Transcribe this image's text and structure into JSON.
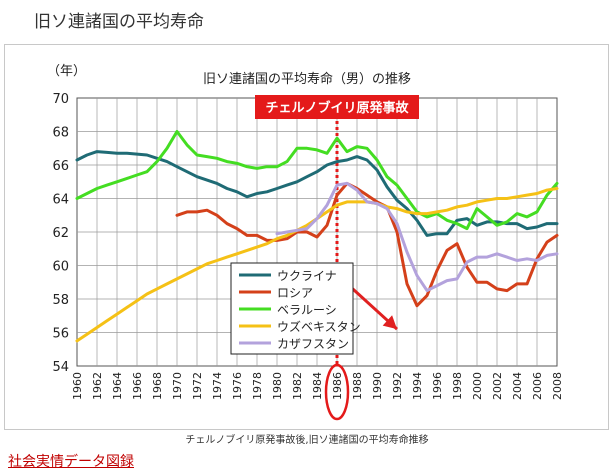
{
  "page": {
    "heading": "旧ソ連諸国の平均寿命",
    "caption": "チェルノブイリ原発事故後,旧ソ連諸国の平均寿命推移",
    "source_link": "社会実情データ図録"
  },
  "chart_data": {
    "type": "line",
    "title": "旧ソ連諸国の平均寿命（男）の推移",
    "ylabel": "（年）",
    "ylim": [
      54,
      70
    ],
    "y_ticks": [
      54,
      56,
      58,
      60,
      62,
      64,
      66,
      68,
      70
    ],
    "xlim": [
      1960,
      2008
    ],
    "x_ticks": [
      "1960",
      "1962",
      "1964",
      "1966",
      "1968",
      "1970",
      "1972",
      "1974",
      "1976",
      "1978",
      "1980",
      "1982",
      "1984",
      "1986",
      "1988",
      "1990",
      "1992",
      "1994",
      "1996",
      "1998",
      "2000",
      "2002",
      "2004",
      "2006",
      "2008"
    ],
    "grid": true,
    "legend_placement": "lower-center",
    "annotation": {
      "label": "チェルノブイリ原発事故",
      "year": 1986,
      "label_bg": "#e41a1a",
      "line_color": "#e41a1a"
    },
    "highlight_tick": "1986",
    "arrow": {
      "from": [
        1985,
        60
      ],
      "to": [
        1992,
        56.2
      ],
      "color": "#e02020"
    },
    "series": [
      {
        "name": "ウクライナ",
        "color": "#1f6b75",
        "x": [
          1960,
          1961,
          1962,
          1963,
          1964,
          1965,
          1966,
          1967,
          1968,
          1969,
          1970,
          1971,
          1972,
          1973,
          1974,
          1975,
          1976,
          1977,
          1978,
          1979,
          1980,
          1981,
          1982,
          1983,
          1984,
          1985,
          1986,
          1987,
          1988,
          1989,
          1990,
          1991,
          1992,
          1993,
          1994,
          1995,
          1996,
          1997,
          1998,
          1999,
          2000,
          2001,
          2002,
          2003,
          2004,
          2005,
          2006,
          2007,
          2008
        ],
        "y": [
          66.3,
          66.6,
          66.8,
          66.75,
          66.7,
          66.7,
          66.65,
          66.6,
          66.4,
          66.2,
          65.9,
          65.6,
          65.3,
          65.1,
          64.9,
          64.6,
          64.4,
          64.1,
          64.3,
          64.4,
          64.6,
          64.8,
          65.0,
          65.3,
          65.6,
          66.0,
          66.2,
          66.3,
          66.5,
          66.3,
          65.7,
          64.7,
          63.9,
          63.4,
          62.7,
          61.8,
          61.9,
          61.9,
          62.7,
          62.8,
          62.4,
          62.6,
          62.6,
          62.5,
          62.5,
          62.2,
          62.3,
          62.5,
          62.5
        ]
      },
      {
        "name": "ロシア",
        "color": "#d4401a",
        "x": [
          1970,
          1971,
          1972,
          1973,
          1974,
          1975,
          1976,
          1977,
          1978,
          1979,
          1980,
          1981,
          1982,
          1983,
          1984,
          1985,
          1986,
          1987,
          1988,
          1989,
          1990,
          1991,
          1992,
          1993,
          1994,
          1995,
          1996,
          1997,
          1998,
          1999,
          2000,
          2001,
          2002,
          2003,
          2004,
          2005,
          2006,
          2007,
          2008
        ],
        "y": [
          63.0,
          63.2,
          63.2,
          63.3,
          63.0,
          62.5,
          62.2,
          61.8,
          61.8,
          61.5,
          61.5,
          61.6,
          62.0,
          62.0,
          61.7,
          62.4,
          64.2,
          64.9,
          64.6,
          64.2,
          63.8,
          63.5,
          62.0,
          58.9,
          57.6,
          58.2,
          59.7,
          60.9,
          61.3,
          59.9,
          59.0,
          59.0,
          58.6,
          58.5,
          58.9,
          58.9,
          60.4,
          61.4,
          61.8
        ]
      },
      {
        "name": "ベラルーシ",
        "color": "#44dd22",
        "x": [
          1960,
          1961,
          1962,
          1963,
          1964,
          1965,
          1966,
          1967,
          1968,
          1969,
          1970,
          1971,
          1972,
          1973,
          1974,
          1975,
          1976,
          1977,
          1978,
          1979,
          1980,
          1981,
          1982,
          1983,
          1984,
          1985,
          1986,
          1987,
          1988,
          1989,
          1990,
          1991,
          1992,
          1993,
          1994,
          1995,
          1996,
          1997,
          1998,
          1999,
          2000,
          2001,
          2002,
          2003,
          2004,
          2005,
          2006,
          2007,
          2008
        ],
        "y": [
          64.0,
          64.3,
          64.6,
          64.8,
          65.0,
          65.2,
          65.4,
          65.6,
          66.2,
          67.0,
          68.0,
          67.2,
          66.6,
          66.5,
          66.4,
          66.2,
          66.1,
          65.9,
          65.8,
          65.9,
          65.9,
          66.2,
          67.0,
          67.0,
          66.9,
          66.7,
          67.6,
          66.8,
          67.1,
          67.0,
          66.3,
          65.3,
          64.8,
          64.0,
          63.2,
          62.9,
          63.1,
          62.7,
          62.5,
          62.2,
          63.4,
          62.9,
          62.4,
          62.6,
          63.1,
          62.9,
          63.2,
          64.2,
          64.9
        ]
      },
      {
        "name": "ウズベキスタン",
        "color": "#f5c116",
        "x": [
          1960,
          1961,
          1962,
          1963,
          1964,
          1965,
          1966,
          1967,
          1968,
          1969,
          1970,
          1971,
          1972,
          1973,
          1974,
          1975,
          1976,
          1977,
          1978,
          1979,
          1980,
          1981,
          1982,
          1983,
          1984,
          1985,
          1986,
          1987,
          1988,
          1989,
          1990,
          1991,
          1992,
          1993,
          1994,
          1995,
          1996,
          1997,
          1998,
          1999,
          2000,
          2001,
          2002,
          2003,
          2004,
          2005,
          2006,
          2007,
          2008
        ],
        "y": [
          55.5,
          55.9,
          56.3,
          56.7,
          57.1,
          57.5,
          57.9,
          58.3,
          58.6,
          58.9,
          59.2,
          59.5,
          59.8,
          60.1,
          60.3,
          60.5,
          60.7,
          60.9,
          61.1,
          61.3,
          61.6,
          61.8,
          62.1,
          62.4,
          62.8,
          63.2,
          63.6,
          63.8,
          63.8,
          63.8,
          63.7,
          63.5,
          63.4,
          63.2,
          63.1,
          63.1,
          63.2,
          63.3,
          63.5,
          63.6,
          63.8,
          63.9,
          64.0,
          64.0,
          64.1,
          64.2,
          64.3,
          64.5,
          64.6
        ]
      },
      {
        "name": "カザフスタン",
        "color": "#b3a2dc",
        "x": [
          1980,
          1981,
          1982,
          1983,
          1984,
          1985,
          1986,
          1987,
          1988,
          1989,
          1990,
          1991,
          1992,
          1993,
          1994,
          1995,
          1996,
          1997,
          1998,
          1999,
          2000,
          2001,
          2002,
          2003,
          2004,
          2005,
          2006,
          2007,
          2008
        ],
        "y": [
          61.9,
          62.0,
          62.1,
          62.2,
          62.8,
          63.6,
          64.8,
          64.9,
          64.5,
          63.8,
          63.7,
          63.4,
          62.5,
          60.8,
          59.4,
          58.5,
          58.8,
          59.1,
          59.2,
          60.2,
          60.5,
          60.5,
          60.7,
          60.5,
          60.3,
          60.4,
          60.3,
          60.6,
          60.7
        ]
      }
    ]
  }
}
